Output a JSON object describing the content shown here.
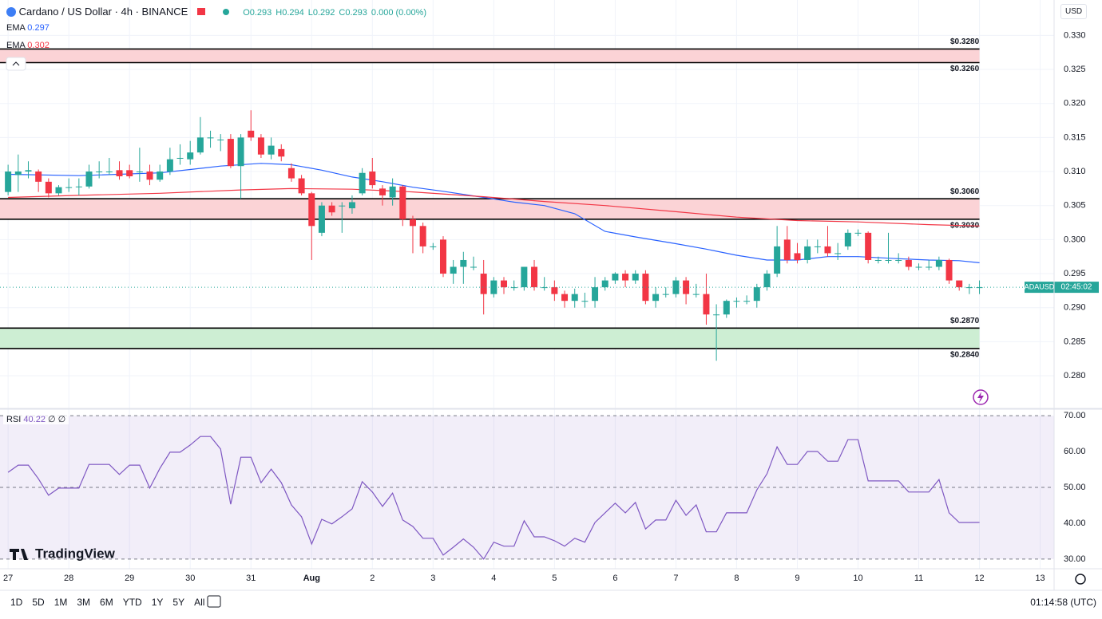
{
  "ui": {
    "symbol": "Cardano / US Dollar · 4h · BINANCE",
    "ohlc": [
      "O0.293",
      "H0.294",
      "L0.292",
      "C0.293",
      "0.000 (0.00%)"
    ],
    "currency": "USD",
    "logo": "TradingView",
    "ranges": [
      "1D",
      "5D",
      "1M",
      "3M",
      "6M",
      "YTD",
      "1Y",
      "5Y",
      "All"
    ],
    "clock": "01:14:58 (UTC)"
  },
  "chart_data": [
    {
      "type": "candlestick",
      "up_color": "#26a69a",
      "down_color": "#f23645",
      "grid": true,
      "xlim": [
        -3.2,
        413.5
      ],
      "ylim": [
        0.2752,
        0.3352
      ],
      "yticks": [
        {
          "value": 0.28,
          "label": "0.280"
        },
        {
          "value": 0.285,
          "label": "0.285"
        },
        {
          "value": 0.29,
          "label": "0.290"
        },
        {
          "value": 0.295,
          "label": "0.295"
        },
        {
          "value": 0.3,
          "label": "0.300"
        },
        {
          "value": 0.305,
          "label": "0.305"
        },
        {
          "value": 0.31,
          "label": "0.310"
        },
        {
          "value": 0.315,
          "label": "0.315"
        },
        {
          "value": 0.32,
          "label": "0.320"
        },
        {
          "value": 0.325,
          "label": "0.325"
        },
        {
          "value": 0.33,
          "label": "0.330"
        }
      ],
      "x": [
        0,
        4,
        8,
        12,
        16,
        20,
        24,
        28,
        32,
        36,
        40,
        44,
        48,
        52,
        56,
        60,
        64,
        68,
        72,
        76,
        80,
        84,
        88,
        92,
        96,
        100,
        104,
        108,
        112,
        116,
        120,
        124,
        128,
        132,
        136,
        140,
        144,
        148,
        152,
        156,
        160,
        164,
        168,
        172,
        176,
        180,
        184,
        188,
        192,
        196,
        200,
        204,
        208,
        212,
        216,
        220,
        224,
        228,
        232,
        236,
        240,
        244,
        248,
        252,
        256,
        260,
        264,
        268,
        272,
        276,
        280,
        284,
        288,
        292,
        296,
        300,
        304,
        308,
        312,
        316,
        320,
        324,
        328,
        332,
        336,
        340,
        344,
        348,
        352,
        356,
        360,
        364,
        368,
        372,
        376,
        380,
        384
      ],
      "open": [
        0.307,
        0.3095,
        0.31,
        0.31,
        0.3085,
        0.3068,
        0.3077,
        0.3078,
        0.3078,
        0.31,
        0.31,
        0.3102,
        0.3102,
        0.31,
        0.31,
        0.3088,
        0.31,
        0.312,
        0.3118,
        0.3128,
        0.315,
        0.3147,
        0.3148,
        0.3108,
        0.316,
        0.315,
        0.3125,
        0.3133,
        0.3105,
        0.309,
        0.3068,
        0.301,
        0.305,
        0.305,
        0.3046,
        0.3068,
        0.31,
        0.3075,
        0.3062,
        0.3078,
        0.303,
        0.302,
        0.299,
        0.3,
        0.295,
        0.296,
        0.296,
        0.295,
        0.292,
        0.294,
        0.293,
        0.293,
        0.296,
        0.293,
        0.293,
        0.292,
        0.291,
        0.291,
        0.291,
        0.293,
        0.294,
        0.295,
        0.294,
        0.295,
        0.291,
        0.292,
        0.292,
        0.294,
        0.292,
        0.292,
        0.289,
        0.289,
        0.291,
        0.291,
        0.291,
        0.293,
        0.295,
        0.3,
        0.298,
        0.297,
        0.299,
        0.299,
        0.298,
        0.299,
        0.301,
        0.301,
        0.297,
        0.297,
        0.297,
        0.297,
        0.296,
        0.296,
        0.296,
        0.297,
        0.294,
        0.293,
        0.293
      ],
      "high": [
        0.311,
        0.3125,
        0.3115,
        0.3103,
        0.309,
        0.308,
        0.309,
        0.309,
        0.311,
        0.3115,
        0.312,
        0.3115,
        0.311,
        0.3135,
        0.311,
        0.311,
        0.3135,
        0.314,
        0.3145,
        0.318,
        0.316,
        0.3155,
        0.3155,
        0.3155,
        0.319,
        0.3155,
        0.315,
        0.314,
        0.3112,
        0.3095,
        0.307,
        0.3055,
        0.3055,
        0.3055,
        0.3065,
        0.3105,
        0.312,
        0.308,
        0.309,
        0.308,
        0.3035,
        0.3025,
        0.2995,
        0.3005,
        0.297,
        0.2982,
        0.2975,
        0.297,
        0.2945,
        0.2945,
        0.294,
        0.296,
        0.297,
        0.2945,
        0.294,
        0.2925,
        0.2928,
        0.2922,
        0.2945,
        0.2945,
        0.2952,
        0.2955,
        0.2955,
        0.2955,
        0.293,
        0.293,
        0.2945,
        0.2945,
        0.2935,
        0.295,
        0.2905,
        0.2912,
        0.2915,
        0.2918,
        0.2935,
        0.2955,
        0.302,
        0.302,
        0.2995,
        0.3,
        0.3,
        0.302,
        0.2995,
        0.3015,
        0.3015,
        0.3012,
        0.2975,
        0.301,
        0.298,
        0.2975,
        0.2965,
        0.297,
        0.2975,
        0.2972,
        0.294,
        0.2935,
        0.294
      ],
      "low": [
        0.3065,
        0.307,
        0.309,
        0.307,
        0.3062,
        0.3065,
        0.307,
        0.3065,
        0.3075,
        0.309,
        0.3095,
        0.3088,
        0.309,
        0.3085,
        0.308,
        0.3085,
        0.3095,
        0.311,
        0.311,
        0.3125,
        0.3135,
        0.313,
        0.3105,
        0.306,
        0.3145,
        0.312,
        0.3118,
        0.3115,
        0.3085,
        0.3065,
        0.297,
        0.3005,
        0.3035,
        0.301,
        0.3038,
        0.3065,
        0.3075,
        0.305,
        0.305,
        0.302,
        0.298,
        0.298,
        0.2985,
        0.2945,
        0.2935,
        0.2935,
        0.2955,
        0.289,
        0.2915,
        0.292,
        0.2925,
        0.2925,
        0.2925,
        0.2925,
        0.291,
        0.29,
        0.29,
        0.29,
        0.29,
        0.2925,
        0.2935,
        0.293,
        0.2935,
        0.2905,
        0.29,
        0.2915,
        0.2915,
        0.2905,
        0.2915,
        0.2875,
        0.2822,
        0.2885,
        0.29,
        0.2905,
        0.29,
        0.2925,
        0.2945,
        0.2965,
        0.2965,
        0.2965,
        0.298,
        0.2975,
        0.297,
        0.2985,
        0.3005,
        0.2965,
        0.2965,
        0.2965,
        0.2965,
        0.2955,
        0.2955,
        0.2955,
        0.2955,
        0.2935,
        0.2925,
        0.292,
        0.292
      ],
      "close": [
        0.31,
        0.31,
        0.3102,
        0.3085,
        0.3068,
        0.3077,
        0.3077,
        0.3078,
        0.31,
        0.31,
        0.31,
        0.3093,
        0.3093,
        0.31,
        0.3088,
        0.31,
        0.3118,
        0.312,
        0.3128,
        0.315,
        0.315,
        0.3147,
        0.3108,
        0.315,
        0.315,
        0.3125,
        0.3138,
        0.3122,
        0.309,
        0.3068,
        0.302,
        0.305,
        0.304,
        0.305,
        0.3055,
        0.3098,
        0.308,
        0.3065,
        0.3078,
        0.303,
        0.302,
        0.299,
        0.299,
        0.295,
        0.296,
        0.297,
        0.296,
        0.292,
        0.294,
        0.293,
        0.293,
        0.296,
        0.293,
        0.293,
        0.292,
        0.291,
        0.292,
        0.291,
        0.293,
        0.294,
        0.295,
        0.294,
        0.295,
        0.291,
        0.292,
        0.292,
        0.294,
        0.292,
        0.292,
        0.289,
        0.289,
        0.291,
        0.291,
        0.291,
        0.293,
        0.295,
        0.299,
        0.297,
        0.297,
        0.299,
        0.299,
        0.298,
        0.298,
        0.301,
        0.301,
        0.297,
        0.297,
        0.297,
        0.297,
        0.296,
        0.296,
        0.296,
        0.297,
        0.294,
        0.293,
        0.293,
        0.293
      ],
      "series": [
        {
          "name": "EMA",
          "legend_value": "0.297",
          "color": "#2962ff",
          "x": [
            0,
            28,
            60,
            72,
            84,
            100,
            112,
            124,
            136,
            148,
            160,
            172,
            188,
            200,
            212,
            224,
            236,
            248,
            264,
            276,
            288,
            300,
            312,
            324,
            336,
            352,
            364,
            376,
            384
          ],
          "values": [
            0.3096,
            0.3094,
            0.3098,
            0.3103,
            0.3108,
            0.3112,
            0.311,
            0.3102,
            0.3092,
            0.3085,
            0.3077,
            0.3071,
            0.3062,
            0.3055,
            0.305,
            0.3038,
            0.3012,
            0.3004,
            0.2994,
            0.2986,
            0.2977,
            0.297,
            0.297,
            0.2975,
            0.2975,
            0.2972,
            0.297,
            0.2969,
            0.2966
          ]
        },
        {
          "name": "EMA",
          "legend_value": "0.302",
          "color": "#f23645",
          "x": [
            0,
            28,
            60,
            92,
            112,
            136,
            160,
            188,
            212,
            236,
            264,
            288,
            312,
            336,
            364,
            384
          ],
          "values": [
            0.3062,
            0.3065,
            0.3068,
            0.3073,
            0.3075,
            0.3074,
            0.307,
            0.3063,
            0.3056,
            0.305,
            0.3041,
            0.3033,
            0.3028,
            0.3026,
            0.3022,
            0.302
          ]
        }
      ],
      "zones": [
        {
          "color": "#fbd3d6",
          "bounds": [
            {
              "value": 0.326,
              "label": "$0.3260"
            },
            {
              "value": 0.328,
              "label": "$0.3280"
            }
          ]
        },
        {
          "color": "#fbd3d6",
          "bounds": [
            {
              "value": 0.303,
              "label": "$0.3030"
            },
            {
              "value": 0.306,
              "label": "$0.3060"
            }
          ]
        },
        {
          "color": "#cdeed3",
          "bounds": [
            {
              "value": 0.284,
              "label": "$0.2840"
            },
            {
              "value": 0.287,
              "label": "$0.2870"
            }
          ]
        }
      ],
      "last_price": 0.293,
      "last_label": "ADAUSD",
      "countdown": "02:45:02"
    },
    {
      "type": "line",
      "name": "RSI",
      "legend_value": "40.22",
      "legend_extra": "∅ ∅",
      "color": "#7e57c2",
      "xlim": [
        -3.2,
        413.5
      ],
      "ylim": [
        27.3,
        71.8
      ],
      "xticks": [
        {
          "value": 0,
          "label": "27"
        },
        {
          "value": 24,
          "label": "28"
        },
        {
          "value": 48,
          "label": "29"
        },
        {
          "value": 72,
          "label": "30"
        },
        {
          "value": 96,
          "label": "31"
        },
        {
          "value": 120,
          "label": "Aug"
        },
        {
          "value": 144,
          "label": "2"
        },
        {
          "value": 168,
          "label": "3"
        },
        {
          "value": 192,
          "label": "4"
        },
        {
          "value": 216,
          "label": "5"
        },
        {
          "value": 240,
          "label": "6"
        },
        {
          "value": 264,
          "label": "7"
        },
        {
          "value": 288,
          "label": "8"
        },
        {
          "value": 312,
          "label": "9"
        },
        {
          "value": 336,
          "label": "10"
        },
        {
          "value": 360,
          "label": "11"
        },
        {
          "value": 384,
          "label": "12"
        },
        {
          "value": 408,
          "label": "13"
        }
      ],
      "yticks": [
        {
          "value": 30,
          "label": "30.00"
        },
        {
          "value": 40,
          "label": "40.00"
        },
        {
          "value": 50,
          "label": "50.00"
        },
        {
          "value": 60,
          "label": "60.00"
        },
        {
          "value": 70,
          "label": "70.00"
        }
      ],
      "levels": [
        30,
        50,
        70
      ],
      "x": [
        0,
        4,
        8,
        12,
        16,
        20,
        24,
        28,
        32,
        36,
        40,
        44,
        48,
        52,
        56,
        60,
        64,
        68,
        72,
        76,
        80,
        84,
        88,
        92,
        96,
        100,
        104,
        108,
        112,
        116,
        120,
        124,
        128,
        132,
        136,
        140,
        144,
        148,
        152,
        156,
        160,
        164,
        168,
        172,
        176,
        180,
        184,
        188,
        192,
        196,
        200,
        204,
        208,
        212,
        216,
        220,
        224,
        228,
        232,
        236,
        240,
        244,
        248,
        252,
        256,
        260,
        264,
        268,
        272,
        276,
        280,
        284,
        288,
        292,
        296,
        300,
        304,
        308,
        312,
        316,
        320,
        324,
        328,
        332,
        336,
        340,
        344,
        348,
        352,
        356,
        360,
        364,
        368,
        372,
        376,
        380,
        384
      ],
      "values": [
        54.2,
        56.2,
        56.2,
        52.4,
        47.8,
        49.8,
        49.8,
        49.8,
        56.4,
        56.4,
        56.4,
        53.6,
        56.2,
        56.2,
        49.8,
        55.3,
        59.8,
        59.8,
        61.8,
        64.2,
        64.2,
        60.7,
        45.3,
        58.4,
        58.4,
        51.3,
        55.1,
        51.3,
        45.1,
        41.8,
        34.2,
        41.1,
        39.8,
        41.8,
        44,
        51.6,
        48.7,
        44.7,
        48.4,
        40.9,
        39.1,
        35.8,
        35.8,
        31.1,
        33.3,
        35.6,
        33.3,
        30,
        34.7,
        33.6,
        33.6,
        40.7,
        36.2,
        36.2,
        35.1,
        33.6,
        35.8,
        34.7,
        40.2,
        42.9,
        45.6,
        42.9,
        45.8,
        38.4,
        40.9,
        40.9,
        46.4,
        42.2,
        45.1,
        37.6,
        37.6,
        42.9,
        42.9,
        42.9,
        49.3,
        53.8,
        61.3,
        56.4,
        56.4,
        60,
        60,
        57.3,
        57.3,
        63.3,
        63.3,
        51.8,
        51.8,
        51.8,
        51.8,
        48.7,
        48.7,
        48.7,
        52.2,
        42.9,
        40.2,
        40.2,
        40.22
      ]
    }
  ]
}
